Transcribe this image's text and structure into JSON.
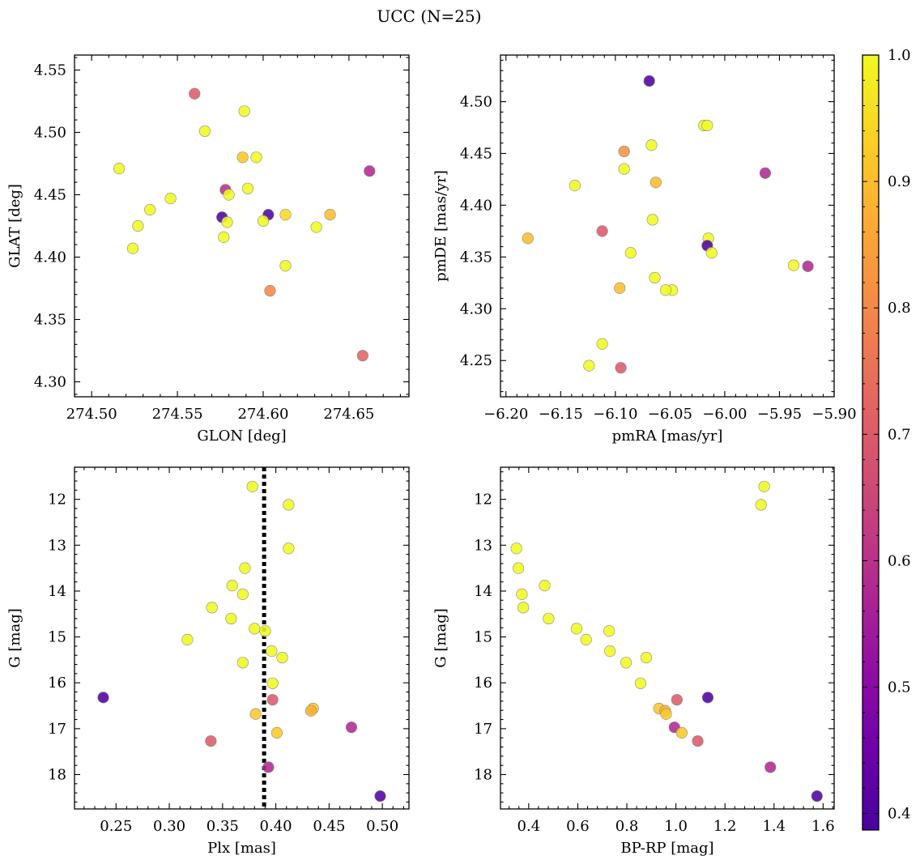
{
  "figure": {
    "title": "UCC (N=25)"
  },
  "chart_data": [
    {
      "type": "scatter",
      "id": "glon-glat",
      "xlabel": "GLON [deg]",
      "ylabel": "GLAT [deg]",
      "xlim": [
        274.49,
        274.685
      ],
      "ylim": [
        4.288,
        4.562
      ],
      "xticks": [
        274.5,
        274.55,
        274.6,
        274.65
      ],
      "xtick_labels": [
        "274.50",
        "274.55",
        "274.60",
        "274.65"
      ],
      "yticks": [
        4.3,
        4.35,
        4.4,
        4.45,
        4.5,
        4.55
      ],
      "ytick_labels": [
        "4.30",
        "4.35",
        "4.40",
        "4.45",
        "4.50",
        "4.55"
      ],
      "points": [
        {
          "x": 274.56,
          "y": 4.531,
          "c": 0.7
        },
        {
          "x": 274.589,
          "y": 4.517,
          "c": 1.0
        },
        {
          "x": 274.566,
          "y": 4.501,
          "c": 1.0
        },
        {
          "x": 274.588,
          "y": 4.48,
          "c": 0.92
        },
        {
          "x": 274.596,
          "y": 4.48,
          "c": 1.0
        },
        {
          "x": 274.516,
          "y": 4.471,
          "c": 1.0
        },
        {
          "x": 274.662,
          "y": 4.469,
          "c": 0.58
        },
        {
          "x": 274.578,
          "y": 4.454,
          "c": 0.6
        },
        {
          "x": 274.591,
          "y": 4.455,
          "c": 1.0
        },
        {
          "x": 274.58,
          "y": 4.45,
          "c": 1.0
        },
        {
          "x": 274.546,
          "y": 4.447,
          "c": 1.0
        },
        {
          "x": 274.534,
          "y": 4.438,
          "c": 1.0
        },
        {
          "x": 274.603,
          "y": 4.434,
          "c": 0.4
        },
        {
          "x": 274.613,
          "y": 4.434,
          "c": 0.95
        },
        {
          "x": 274.639,
          "y": 4.434,
          "c": 0.9
        },
        {
          "x": 274.576,
          "y": 4.432,
          "c": 0.4
        },
        {
          "x": 274.6,
          "y": 4.429,
          "c": 1.0
        },
        {
          "x": 274.579,
          "y": 4.428,
          "c": 1.0
        },
        {
          "x": 274.527,
          "y": 4.425,
          "c": 1.0
        },
        {
          "x": 274.631,
          "y": 4.424,
          "c": 1.0
        },
        {
          "x": 274.577,
          "y": 4.416,
          "c": 1.0
        },
        {
          "x": 274.524,
          "y": 4.407,
          "c": 1.0
        },
        {
          "x": 274.613,
          "y": 4.393,
          "c": 1.0
        },
        {
          "x": 274.604,
          "y": 4.373,
          "c": 0.8
        },
        {
          "x": 274.658,
          "y": 4.321,
          "c": 0.72
        }
      ]
    },
    {
      "type": "scatter",
      "id": "pmra-pmde",
      "xlabel": "pmRA [mas/yr]",
      "ylabel": "pmDE [mas/yr]",
      "xlim": [
        -6.205,
        -5.9
      ],
      "ylim": [
        4.215,
        4.545
      ],
      "xticks": [
        -6.2,
        -6.15,
        -6.1,
        -6.05,
        -6.0,
        -5.95,
        -5.9
      ],
      "xtick_labels": [
        "−6.20",
        "−6.15",
        "−6.10",
        "−6.05",
        "−6.00",
        "−5.95",
        "−5.90"
      ],
      "yticks": [
        4.25,
        4.3,
        4.35,
        4.4,
        4.45,
        4.5
      ],
      "ytick_labels": [
        "4.25",
        "4.30",
        "4.35",
        "4.40",
        "4.45",
        "4.50"
      ],
      "points": [
        {
          "x": -6.069,
          "y": 4.52,
          "c": 0.4
        },
        {
          "x": -6.019,
          "y": 4.477,
          "c": 1.0
        },
        {
          "x": -6.016,
          "y": 4.477,
          "c": 1.0
        },
        {
          "x": -6.067,
          "y": 4.458,
          "c": 1.0
        },
        {
          "x": -6.092,
          "y": 4.452,
          "c": 0.82
        },
        {
          "x": -6.092,
          "y": 4.435,
          "c": 1.0
        },
        {
          "x": -5.963,
          "y": 4.431,
          "c": 0.58
        },
        {
          "x": -6.063,
          "y": 4.422,
          "c": 0.9
        },
        {
          "x": -6.137,
          "y": 4.419,
          "c": 1.0
        },
        {
          "x": -6.066,
          "y": 4.386,
          "c": 1.0
        },
        {
          "x": -6.112,
          "y": 4.375,
          "c": 0.7
        },
        {
          "x": -6.18,
          "y": 4.368,
          "c": 0.9
        },
        {
          "x": -6.015,
          "y": 4.368,
          "c": 1.0
        },
        {
          "x": -6.016,
          "y": 4.361,
          "c": 0.4
        },
        {
          "x": -6.086,
          "y": 4.354,
          "c": 1.0
        },
        {
          "x": -6.012,
          "y": 4.354,
          "c": 1.0
        },
        {
          "x": -5.937,
          "y": 4.342,
          "c": 1.0
        },
        {
          "x": -5.924,
          "y": 4.341,
          "c": 0.58
        },
        {
          "x": -6.064,
          "y": 4.33,
          "c": 1.0
        },
        {
          "x": -6.096,
          "y": 4.32,
          "c": 0.9
        },
        {
          "x": -6.048,
          "y": 4.318,
          "c": 1.0
        },
        {
          "x": -6.054,
          "y": 4.318,
          "c": 1.0
        },
        {
          "x": -6.112,
          "y": 4.266,
          "c": 1.0
        },
        {
          "x": -6.124,
          "y": 4.245,
          "c": 1.0
        },
        {
          "x": -6.095,
          "y": 4.243,
          "c": 0.7
        }
      ]
    },
    {
      "type": "scatter",
      "id": "plx-g",
      "xlabel": "Plx [mas]",
      "ylabel": "G [mag]",
      "xlim": [
        0.211,
        0.525
      ],
      "ylim": [
        18.75,
        11.3
      ],
      "y_inverted": true,
      "vline": {
        "x": 0.389,
        "style": "dotted",
        "color": "#000000"
      },
      "xticks": [
        0.25,
        0.3,
        0.35,
        0.4,
        0.45,
        0.5
      ],
      "xtick_labels": [
        "0.25",
        "0.30",
        "0.35",
        "0.40",
        "0.45",
        "0.50"
      ],
      "yticks": [
        12,
        13,
        14,
        15,
        16,
        17,
        18
      ],
      "ytick_labels": [
        "12",
        "13",
        "14",
        "15",
        "16",
        "17",
        "18"
      ],
      "points": [
        {
          "x": 0.378,
          "y": 11.72,
          "c": 1.0
        },
        {
          "x": 0.412,
          "y": 12.12,
          "c": 1.0
        },
        {
          "x": 0.412,
          "y": 13.07,
          "c": 1.0
        },
        {
          "x": 0.371,
          "y": 13.5,
          "c": 1.0
        },
        {
          "x": 0.359,
          "y": 13.88,
          "c": 1.0
        },
        {
          "x": 0.369,
          "y": 14.07,
          "c": 1.0
        },
        {
          "x": 0.34,
          "y": 14.36,
          "c": 1.0
        },
        {
          "x": 0.358,
          "y": 14.6,
          "c": 1.0
        },
        {
          "x": 0.38,
          "y": 14.82,
          "c": 1.0
        },
        {
          "x": 0.39,
          "y": 14.87,
          "c": 1.0
        },
        {
          "x": 0.317,
          "y": 15.06,
          "c": 1.0
        },
        {
          "x": 0.396,
          "y": 15.31,
          "c": 1.0
        },
        {
          "x": 0.406,
          "y": 15.45,
          "c": 1.0
        },
        {
          "x": 0.369,
          "y": 15.56,
          "c": 1.0
        },
        {
          "x": 0.397,
          "y": 16.01,
          "c": 1.0
        },
        {
          "x": 0.238,
          "y": 16.32,
          "c": 0.4
        },
        {
          "x": 0.397,
          "y": 16.37,
          "c": 0.7
        },
        {
          "x": 0.435,
          "y": 16.56,
          "c": 0.92
        },
        {
          "x": 0.433,
          "y": 16.61,
          "c": 0.88
        },
        {
          "x": 0.381,
          "y": 16.68,
          "c": 0.92
        },
        {
          "x": 0.471,
          "y": 16.97,
          "c": 0.58
        },
        {
          "x": 0.401,
          "y": 17.09,
          "c": 0.92
        },
        {
          "x": 0.339,
          "y": 17.27,
          "c": 0.7
        },
        {
          "x": 0.393,
          "y": 17.84,
          "c": 0.58
        },
        {
          "x": 0.498,
          "y": 18.47,
          "c": 0.4
        }
      ]
    },
    {
      "type": "scatter",
      "id": "bprp-g",
      "xlabel": "BP-RP [mag]",
      "ylabel": "G [mag]",
      "xlim": [
        0.285,
        1.645
      ],
      "ylim": [
        18.75,
        11.3
      ],
      "y_inverted": true,
      "xticks": [
        0.4,
        0.6,
        0.8,
        1.0,
        1.2,
        1.4,
        1.6
      ],
      "xtick_labels": [
        "0.4",
        "0.6",
        "0.8",
        "1.0",
        "1.2",
        "1.4",
        "1.6"
      ],
      "yticks": [
        12,
        13,
        14,
        15,
        16,
        17,
        18
      ],
      "ytick_labels": [
        "12",
        "13",
        "14",
        "15",
        "16",
        "17",
        "18"
      ],
      "points": [
        {
          "x": 1.36,
          "y": 11.72,
          "c": 1.0
        },
        {
          "x": 1.347,
          "y": 12.12,
          "c": 1.0
        },
        {
          "x": 0.35,
          "y": 13.07,
          "c": 1.0
        },
        {
          "x": 0.358,
          "y": 13.5,
          "c": 1.0
        },
        {
          "x": 0.465,
          "y": 13.88,
          "c": 1.0
        },
        {
          "x": 0.372,
          "y": 14.07,
          "c": 1.0
        },
        {
          "x": 0.378,
          "y": 14.36,
          "c": 1.0
        },
        {
          "x": 0.481,
          "y": 14.6,
          "c": 1.0
        },
        {
          "x": 0.595,
          "y": 14.82,
          "c": 1.0
        },
        {
          "x": 0.728,
          "y": 14.87,
          "c": 1.0
        },
        {
          "x": 0.634,
          "y": 15.06,
          "c": 1.0
        },
        {
          "x": 0.731,
          "y": 15.31,
          "c": 1.0
        },
        {
          "x": 0.879,
          "y": 15.45,
          "c": 1.0
        },
        {
          "x": 0.797,
          "y": 15.56,
          "c": 1.0
        },
        {
          "x": 0.856,
          "y": 16.01,
          "c": 1.0
        },
        {
          "x": 1.13,
          "y": 16.32,
          "c": 0.4
        },
        {
          "x": 1.004,
          "y": 16.37,
          "c": 0.7
        },
        {
          "x": 0.931,
          "y": 16.56,
          "c": 0.92
        },
        {
          "x": 0.956,
          "y": 16.61,
          "c": 0.88
        },
        {
          "x": 0.96,
          "y": 16.68,
          "c": 0.92
        },
        {
          "x": 0.994,
          "y": 16.97,
          "c": 0.58
        },
        {
          "x": 1.024,
          "y": 17.09,
          "c": 0.92
        },
        {
          "x": 1.089,
          "y": 17.27,
          "c": 0.7
        },
        {
          "x": 1.385,
          "y": 17.84,
          "c": 0.58
        },
        {
          "x": 1.575,
          "y": 18.47,
          "c": 0.4
        }
      ]
    }
  ],
  "colorbar": {
    "colormap": "plasma",
    "range": [
      0.387,
      1.0
    ],
    "ticks": [
      0.4,
      0.5,
      0.6,
      0.7,
      0.8,
      0.9,
      1.0
    ],
    "tick_labels": [
      "0.4",
      "0.5",
      "0.6",
      "0.7",
      "0.8",
      "0.9",
      "1.0"
    ]
  }
}
